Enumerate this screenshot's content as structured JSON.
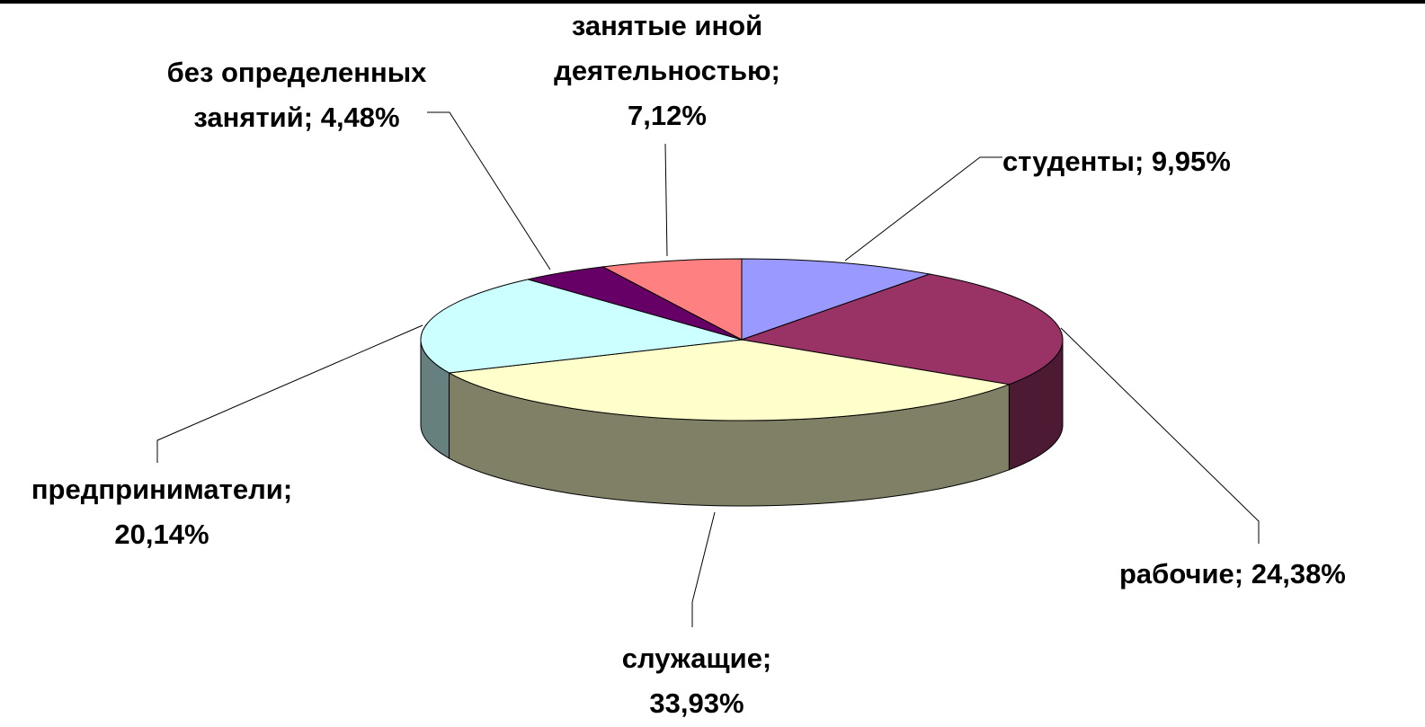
{
  "chart_data": {
    "type": "pie3d",
    "categories": [
      "студенты;",
      "рабочие;",
      "служащие;",
      "предприниматели;",
      "без определенных занятий;",
      "занятые иной деятельностью;"
    ],
    "values": [
      9.95,
      24.38,
      33.93,
      20.14,
      4.48,
      7.12
    ],
    "value_labels": [
      "9,95%",
      "24,38%",
      "33,93%",
      "20,14%",
      "4,48%",
      "7,12%"
    ],
    "colors": [
      "#9999ff",
      "#993366",
      "#ffffcc",
      "#ccffff",
      "#660066",
      "#ff8080"
    ]
  }
}
